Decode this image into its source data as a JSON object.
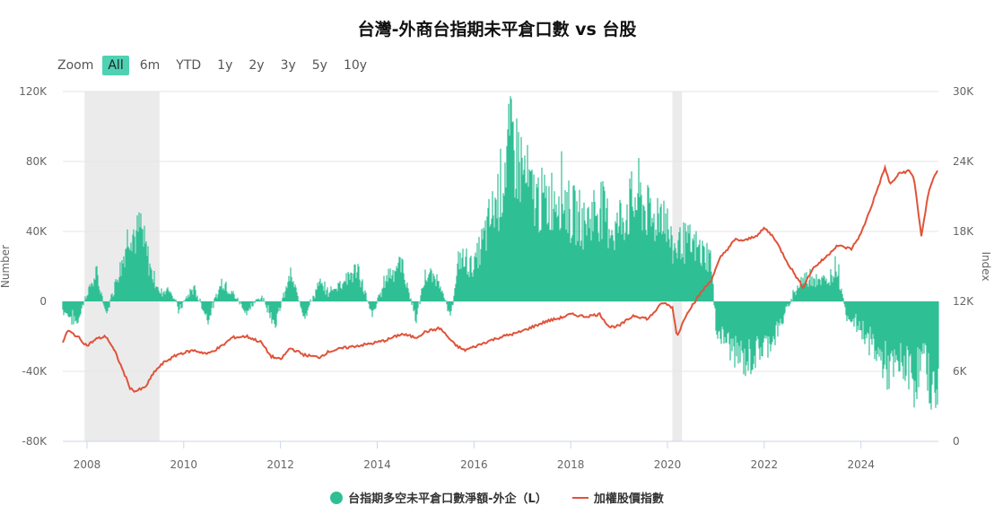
{
  "title": "台灣-外商台指期未平倉口數 vs 台股",
  "zoom": {
    "label": "Zoom",
    "buttons": [
      "All",
      "6m",
      "YTD",
      "1y",
      "2y",
      "3y",
      "5y",
      "10y"
    ],
    "active": "All"
  },
  "legend": {
    "series1": "台指期多空未平倉口數淨額-外企（L）",
    "series2": "加權股價指數"
  },
  "colors": {
    "bars": "#2fbf95",
    "line": "#e0533a",
    "shade": "#ebebeb",
    "grid": "#e6e6e6"
  },
  "chart_data": {
    "type": "area",
    "title": "台灣-外商台指期未平倉口數 vs 台股",
    "x_range": [
      2007.5,
      2025.6
    ],
    "x_ticks": [
      "2008",
      "2010",
      "2012",
      "2014",
      "2016",
      "2018",
      "2020",
      "2022",
      "2024"
    ],
    "left_axis": {
      "label": "Number",
      "ticks": [
        "120K",
        "80K",
        "40K",
        "0",
        "-40K",
        "-80K"
      ],
      "range": [
        -80000,
        120000
      ]
    },
    "right_axis": {
      "label": "Index",
      "ticks": [
        "30K",
        "24K",
        "18K",
        "12K",
        "6K",
        "0"
      ],
      "range": [
        0,
        30000
      ]
    },
    "shaded_periods": [
      [
        2007.95,
        2009.5
      ],
      [
        2020.1,
        2020.3
      ]
    ],
    "series": [
      {
        "name": "台指期多空未平倉口數淨額-外企（L）",
        "axis": "left",
        "type": "column",
        "points": [
          [
            2007.5,
            -5000
          ],
          [
            2007.8,
            -12000
          ],
          [
            2008.0,
            5000
          ],
          [
            2008.2,
            15000
          ],
          [
            2008.4,
            -8000
          ],
          [
            2008.6,
            12000
          ],
          [
            2008.8,
            30000
          ],
          [
            2008.9,
            45000
          ],
          [
            2009.0,
            35000
          ],
          [
            2009.1,
            42000
          ],
          [
            2009.3,
            20000
          ],
          [
            2009.5,
            5000
          ],
          [
            2009.7,
            8000
          ],
          [
            2009.9,
            -5000
          ],
          [
            2010.2,
            8000
          ],
          [
            2010.5,
            -10000
          ],
          [
            2010.8,
            12000
          ],
          [
            2011.0,
            5000
          ],
          [
            2011.3,
            -6000
          ],
          [
            2011.6,
            3000
          ],
          [
            2011.9,
            -12000
          ],
          [
            2012.2,
            15000
          ],
          [
            2012.5,
            -8000
          ],
          [
            2012.8,
            10000
          ],
          [
            2013.0,
            5000
          ],
          [
            2013.3,
            12000
          ],
          [
            2013.6,
            18000
          ],
          [
            2013.9,
            -8000
          ],
          [
            2014.2,
            15000
          ],
          [
            2014.5,
            22000
          ],
          [
            2014.8,
            -10000
          ],
          [
            2015.0,
            15000
          ],
          [
            2015.3,
            12000
          ],
          [
            2015.5,
            -10000
          ],
          [
            2015.6,
            5000
          ],
          [
            2015.7,
            25000
          ],
          [
            2016.0,
            20000
          ],
          [
            2016.2,
            35000
          ],
          [
            2016.5,
            60000
          ],
          [
            2016.7,
            85000
          ],
          [
            2016.8,
            90000
          ],
          [
            2017.0,
            75000
          ],
          [
            2017.2,
            60000
          ],
          [
            2017.5,
            55000
          ],
          [
            2017.8,
            65000
          ],
          [
            2018.0,
            50000
          ],
          [
            2018.3,
            45000
          ],
          [
            2018.6,
            55000
          ],
          [
            2018.9,
            40000
          ],
          [
            2019.1,
            50000
          ],
          [
            2019.4,
            60000
          ],
          [
            2019.7,
            45000
          ],
          [
            2019.9,
            55000
          ],
          [
            2020.1,
            30000
          ],
          [
            2020.3,
            35000
          ],
          [
            2020.6,
            30000
          ],
          [
            2020.9,
            25000
          ],
          [
            2021.0,
            -15000
          ],
          [
            2021.3,
            -25000
          ],
          [
            2021.6,
            -35000
          ],
          [
            2021.9,
            -28000
          ],
          [
            2022.2,
            -20000
          ],
          [
            2022.4,
            -10000
          ],
          [
            2022.6,
            5000
          ],
          [
            2022.8,
            12000
          ],
          [
            2023.0,
            15000
          ],
          [
            2023.3,
            10000
          ],
          [
            2023.5,
            22000
          ],
          [
            2023.7,
            -8000
          ],
          [
            2024.0,
            -15000
          ],
          [
            2024.3,
            -28000
          ],
          [
            2024.6,
            -40000
          ],
          [
            2024.9,
            -35000
          ],
          [
            2025.1,
            -45000
          ],
          [
            2025.3,
            -30000
          ],
          [
            2025.5,
            -55000
          ],
          [
            2025.6,
            -45000
          ]
        ]
      },
      {
        "name": "加權股價指數",
        "axis": "right",
        "type": "line",
        "points": [
          [
            2007.5,
            8500
          ],
          [
            2007.6,
            9500
          ],
          [
            2007.8,
            9000
          ],
          [
            2008.0,
            8200
          ],
          [
            2008.2,
            8800
          ],
          [
            2008.4,
            9000
          ],
          [
            2008.6,
            7500
          ],
          [
            2008.8,
            5500
          ],
          [
            2008.9,
            4500
          ],
          [
            2009.0,
            4300
          ],
          [
            2009.2,
            4600
          ],
          [
            2009.4,
            6000
          ],
          [
            2009.6,
            6800
          ],
          [
            2009.9,
            7500
          ],
          [
            2010.2,
            7800
          ],
          [
            2010.5,
            7500
          ],
          [
            2010.8,
            8200
          ],
          [
            2011.0,
            8900
          ],
          [
            2011.3,
            9000
          ],
          [
            2011.6,
            8500
          ],
          [
            2011.8,
            7300
          ],
          [
            2012.0,
            7000
          ],
          [
            2012.2,
            8000
          ],
          [
            2012.5,
            7400
          ],
          [
            2012.8,
            7200
          ],
          [
            2013.0,
            7700
          ],
          [
            2013.3,
            8000
          ],
          [
            2013.6,
            8200
          ],
          [
            2013.9,
            8400
          ],
          [
            2014.2,
            8700
          ],
          [
            2014.5,
            9200
          ],
          [
            2014.8,
            8900
          ],
          [
            2015.0,
            9400
          ],
          [
            2015.3,
            9700
          ],
          [
            2015.6,
            8300
          ],
          [
            2015.8,
            7800
          ],
          [
            2016.0,
            8100
          ],
          [
            2016.3,
            8600
          ],
          [
            2016.6,
            9000
          ],
          [
            2016.9,
            9300
          ],
          [
            2017.2,
            9800
          ],
          [
            2017.5,
            10300
          ],
          [
            2017.8,
            10600
          ],
          [
            2018.0,
            10900
          ],
          [
            2018.3,
            10700
          ],
          [
            2018.6,
            10900
          ],
          [
            2018.8,
            9800
          ],
          [
            2019.0,
            9900
          ],
          [
            2019.3,
            10800
          ],
          [
            2019.6,
            10500
          ],
          [
            2019.9,
            11900
          ],
          [
            2020.1,
            11500
          ],
          [
            2020.2,
            9000
          ],
          [
            2020.4,
            11000
          ],
          [
            2020.7,
            12800
          ],
          [
            2020.9,
            13800
          ],
          [
            2021.1,
            15800
          ],
          [
            2021.4,
            17300
          ],
          [
            2021.6,
            17200
          ],
          [
            2021.9,
            17800
          ],
          [
            2022.0,
            18300
          ],
          [
            2022.2,
            17500
          ],
          [
            2022.5,
            15200
          ],
          [
            2022.8,
            13200
          ],
          [
            2023.0,
            14800
          ],
          [
            2023.3,
            15900
          ],
          [
            2023.5,
            16800
          ],
          [
            2023.8,
            16500
          ],
          [
            2024.0,
            17800
          ],
          [
            2024.2,
            20000
          ],
          [
            2024.5,
            23500
          ],
          [
            2024.6,
            22000
          ],
          [
            2024.8,
            23000
          ],
          [
            2025.0,
            23200
          ],
          [
            2025.1,
            22500
          ],
          [
            2025.25,
            17500
          ],
          [
            2025.4,
            21500
          ],
          [
            2025.5,
            22600
          ],
          [
            2025.6,
            23300
          ]
        ]
      }
    ]
  }
}
